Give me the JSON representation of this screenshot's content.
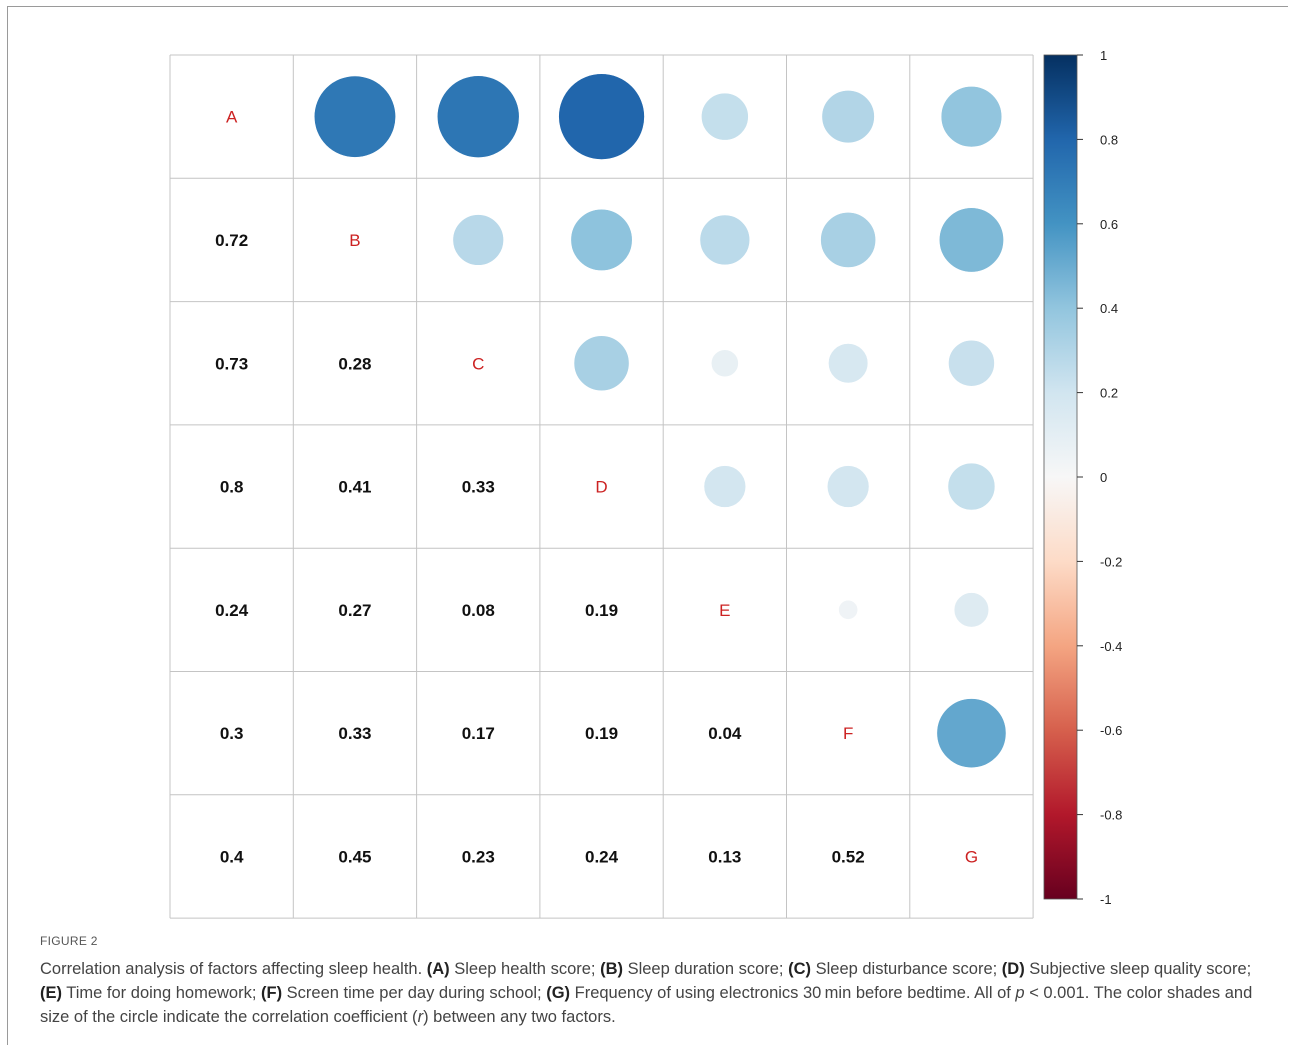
{
  "figure": {
    "label": "FIGURE 2",
    "caption_parts": [
      {
        "t": "Correlation analysis of factors affecting sleep health. "
      },
      {
        "t": "(A)",
        "b": true
      },
      {
        "t": " Sleep health score; "
      },
      {
        "t": "(B)",
        "b": true
      },
      {
        "t": " Sleep duration score; "
      },
      {
        "t": "(C)",
        "b": true
      },
      {
        "t": " Sleep disturbance score; "
      },
      {
        "t": "(D)",
        "b": true
      },
      {
        "t": " Subjective sleep quality score; "
      },
      {
        "t": "(E)",
        "b": true
      },
      {
        "t": " Time for doing homework; "
      },
      {
        "t": "(F)",
        "b": true
      },
      {
        "t": " Screen time per day during school; "
      },
      {
        "t": "(G)",
        "b": true
      },
      {
        "t": " Frequency of using electronics 30 min before bedtime. All of "
      },
      {
        "t": "p",
        "i": true
      },
      {
        "t": " < 0.001. The color shades and size of the circle indicate the correlation coefficient ("
      },
      {
        "t": "r",
        "i": true
      },
      {
        "t": ") between any two factors."
      }
    ]
  },
  "chart_data": {
    "type": "heatmap",
    "variables": [
      "A",
      "B",
      "C",
      "D",
      "E",
      "F",
      "G"
    ],
    "matrix": [
      [
        1,
        0.72,
        0.73,
        0.8,
        0.24,
        0.3,
        0.4
      ],
      [
        0.72,
        1,
        0.28,
        0.41,
        0.27,
        0.33,
        0.45
      ],
      [
        0.73,
        0.28,
        1,
        0.33,
        0.08,
        0.17,
        0.23
      ],
      [
        0.8,
        0.41,
        0.33,
        1,
        0.19,
        0.19,
        0.24
      ],
      [
        0.24,
        0.27,
        0.08,
        0.19,
        1,
        0.04,
        0.13
      ],
      [
        0.3,
        0.33,
        0.17,
        0.19,
        0.04,
        1,
        0.52
      ],
      [
        0.4,
        0.45,
        0.23,
        0.24,
        0.13,
        0.52,
        1
      ]
    ],
    "lower_triangle_labels": [
      [
        null,
        null,
        null,
        null,
        null,
        null,
        null
      ],
      [
        "0.72",
        null,
        null,
        null,
        null,
        null,
        null
      ],
      [
        "0.73",
        "0.28",
        null,
        null,
        null,
        null,
        null
      ],
      [
        "0.8",
        "0.41",
        "0.33",
        null,
        null,
        null,
        null
      ],
      [
        "0.24",
        "0.27",
        "0.08",
        "0.19",
        null,
        null,
        null
      ],
      [
        "0.3",
        "0.33",
        "0.17",
        "0.19",
        "0.04",
        null,
        null
      ],
      [
        "0.4",
        "0.45",
        "0.23",
        "0.24",
        "0.13",
        "0.52",
        null
      ]
    ],
    "upper_triangle": "circles",
    "lower_triangle": "numbers",
    "colorbar": {
      "range": [
        -1,
        1
      ],
      "tick_labels": [
        "1",
        "0.8",
        "0.6",
        "0.4",
        "0.2",
        "0",
        "-0.2",
        "-0.4",
        "-0.6",
        "-0.8",
        "-1"
      ],
      "tick_values": [
        1,
        0.8,
        0.6,
        0.4,
        0.2,
        0,
        -0.2,
        -0.4,
        -0.6,
        -0.8,
        -1
      ],
      "placement": "right"
    },
    "colors": {
      "diagonal_label": "#cc2222",
      "number_text": "#111111",
      "grid": "#c4c4c4",
      "scale": [
        [
          -1,
          "#67001f"
        ],
        [
          -0.8,
          "#b2182b"
        ],
        [
          -0.6,
          "#d6604d"
        ],
        [
          -0.4,
          "#f4a582"
        ],
        [
          -0.2,
          "#fddbc7"
        ],
        [
          0,
          "#f7f7f7"
        ],
        [
          0.2,
          "#d1e5f0"
        ],
        [
          0.4,
          "#92c5de"
        ],
        [
          0.6,
          "#4393c3"
        ],
        [
          0.8,
          "#2166ac"
        ],
        [
          1,
          "#053061"
        ]
      ]
    }
  }
}
